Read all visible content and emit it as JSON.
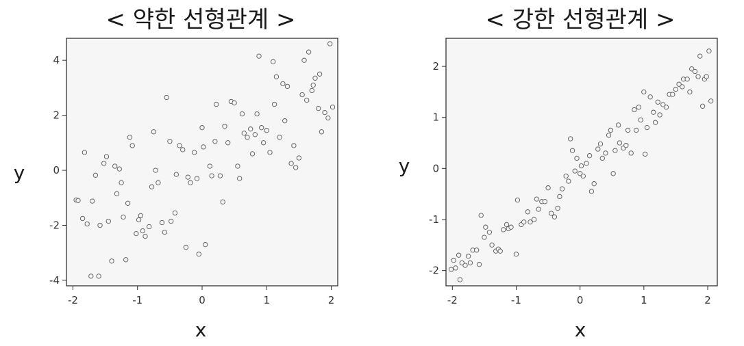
{
  "chart_data": [
    {
      "type": "scatter",
      "title": "< 약한 선형관계 >",
      "xlabel": "x",
      "ylabel": "y",
      "xlim": [
        -2.1,
        2.1
      ],
      "ylim": [
        -4.2,
        4.8
      ],
      "xticks": [
        -2,
        -1,
        0,
        1,
        2
      ],
      "yticks": [
        -4,
        -2,
        0,
        2,
        4
      ],
      "grid": false,
      "marker_color": "#555555",
      "points": [
        {
          "x": -1.95,
          "y": -1.08
        },
        {
          "x": -1.92,
          "y": -1.1
        },
        {
          "x": -1.85,
          "y": -1.75
        },
        {
          "x": -1.82,
          "y": 0.65
        },
        {
          "x": -1.78,
          "y": -1.95
        },
        {
          "x": -1.72,
          "y": -3.85
        },
        {
          "x": -1.7,
          "y": -1.12
        },
        {
          "x": -1.65,
          "y": -0.18
        },
        {
          "x": -1.6,
          "y": -3.85
        },
        {
          "x": -1.58,
          "y": -2.0
        },
        {
          "x": -1.52,
          "y": 0.25
        },
        {
          "x": -1.48,
          "y": 0.5
        },
        {
          "x": -1.45,
          "y": -1.85
        },
        {
          "x": -1.4,
          "y": -3.3
        },
        {
          "x": -1.35,
          "y": 0.15
        },
        {
          "x": -1.32,
          "y": -0.85
        },
        {
          "x": -1.28,
          "y": 0.05
        },
        {
          "x": -1.25,
          "y": -0.45
        },
        {
          "x": -1.22,
          "y": -1.7
        },
        {
          "x": -1.18,
          "y": -3.25
        },
        {
          "x": -1.15,
          "y": -1.2
        },
        {
          "x": -1.12,
          "y": 1.2
        },
        {
          "x": -1.08,
          "y": 0.9
        },
        {
          "x": -1.02,
          "y": -2.3
        },
        {
          "x": -0.98,
          "y": -1.8
        },
        {
          "x": -0.95,
          "y": -1.65
        },
        {
          "x": -0.92,
          "y": -2.2
        },
        {
          "x": -0.88,
          "y": -2.4
        },
        {
          "x": -0.82,
          "y": -2.05
        },
        {
          "x": -0.78,
          "y": -0.6
        },
        {
          "x": -0.75,
          "y": 1.4
        },
        {
          "x": -0.72,
          "y": -0.0
        },
        {
          "x": -0.68,
          "y": -0.45
        },
        {
          "x": -0.62,
          "y": -1.9
        },
        {
          "x": -0.58,
          "y": -2.25
        },
        {
          "x": -0.55,
          "y": 2.65
        },
        {
          "x": -0.5,
          "y": 1.05
        },
        {
          "x": -0.48,
          "y": -1.85
        },
        {
          "x": -0.42,
          "y": -1.55
        },
        {
          "x": -0.4,
          "y": -0.15
        },
        {
          "x": -0.35,
          "y": 0.9
        },
        {
          "x": -0.3,
          "y": 0.75
        },
        {
          "x": -0.25,
          "y": -2.8
        },
        {
          "x": -0.22,
          "y": -0.25
        },
        {
          "x": -0.18,
          "y": -0.45
        },
        {
          "x": -0.12,
          "y": 0.65
        },
        {
          "x": -0.08,
          "y": -0.3
        },
        {
          "x": -0.05,
          "y": -3.05
        },
        {
          "x": 0.0,
          "y": 1.55
        },
        {
          "x": 0.02,
          "y": 0.85
        },
        {
          "x": 0.05,
          "y": -2.7
        },
        {
          "x": 0.12,
          "y": 0.15
        },
        {
          "x": 0.15,
          "y": -0.2
        },
        {
          "x": 0.2,
          "y": 1.05
        },
        {
          "x": 0.22,
          "y": 2.4
        },
        {
          "x": 0.28,
          "y": -0.2
        },
        {
          "x": 0.32,
          "y": -1.15
        },
        {
          "x": 0.35,
          "y": 1.6
        },
        {
          "x": 0.4,
          "y": 1.0
        },
        {
          "x": 0.45,
          "y": 2.5
        },
        {
          "x": 0.5,
          "y": 2.45
        },
        {
          "x": 0.55,
          "y": 0.15
        },
        {
          "x": 0.58,
          "y": -0.3
        },
        {
          "x": 0.62,
          "y": 2.05
        },
        {
          "x": 0.65,
          "y": 1.35
        },
        {
          "x": 0.7,
          "y": 1.2
        },
        {
          "x": 0.75,
          "y": 1.5
        },
        {
          "x": 0.78,
          "y": 0.6
        },
        {
          "x": 0.82,
          "y": 1.3
        },
        {
          "x": 0.85,
          "y": 2.05
        },
        {
          "x": 0.88,
          "y": 4.15
        },
        {
          "x": 0.92,
          "y": 1.55
        },
        {
          "x": 0.95,
          "y": 1.0
        },
        {
          "x": 1.0,
          "y": 1.45
        },
        {
          "x": 1.05,
          "y": 0.65
        },
        {
          "x": 1.1,
          "y": 3.95
        },
        {
          "x": 1.12,
          "y": 2.4
        },
        {
          "x": 1.15,
          "y": 3.4
        },
        {
          "x": 1.2,
          "y": 1.2
        },
        {
          "x": 1.25,
          "y": 3.15
        },
        {
          "x": 1.28,
          "y": 1.8
        },
        {
          "x": 1.32,
          "y": 3.05
        },
        {
          "x": 1.38,
          "y": 0.25
        },
        {
          "x": 1.42,
          "y": 0.9
        },
        {
          "x": 1.45,
          "y": 0.1
        },
        {
          "x": 1.5,
          "y": 0.45
        },
        {
          "x": 1.55,
          "y": 2.75
        },
        {
          "x": 1.58,
          "y": 4.0
        },
        {
          "x": 1.62,
          "y": 2.55
        },
        {
          "x": 1.65,
          "y": 4.3
        },
        {
          "x": 1.7,
          "y": 2.9
        },
        {
          "x": 1.72,
          "y": 3.1
        },
        {
          "x": 1.75,
          "y": 3.35
        },
        {
          "x": 1.8,
          "y": 2.25
        },
        {
          "x": 1.82,
          "y": 3.5
        },
        {
          "x": 1.85,
          "y": 1.4
        },
        {
          "x": 1.9,
          "y": 2.1
        },
        {
          "x": 1.95,
          "y": 1.9
        },
        {
          "x": 1.98,
          "y": 4.6
        },
        {
          "x": 2.02,
          "y": 2.3
        }
      ]
    },
    {
      "type": "scatter",
      "title": "< 강한 선형관계 >",
      "xlabel": "x",
      "ylabel": "y",
      "xlim": [
        -2.1,
        2.15
      ],
      "ylim": [
        -2.3,
        2.55
      ],
      "xticks": [
        -2,
        -1,
        0,
        1,
        2
      ],
      "yticks": [
        -2,
        -1,
        0,
        1,
        2
      ],
      "grid": false,
      "marker_color": "#555555",
      "points": [
        {
          "x": -2.02,
          "y": -1.98
        },
        {
          "x": -1.98,
          "y": -1.8
        },
        {
          "x": -1.95,
          "y": -1.95
        },
        {
          "x": -1.9,
          "y": -1.7
        },
        {
          "x": -1.88,
          "y": -2.18
        },
        {
          "x": -1.85,
          "y": -1.85
        },
        {
          "x": -1.8,
          "y": -1.9
        },
        {
          "x": -1.75,
          "y": -1.72
        },
        {
          "x": -1.72,
          "y": -1.85
        },
        {
          "x": -1.68,
          "y": -1.6
        },
        {
          "x": -1.62,
          "y": -1.6
        },
        {
          "x": -1.58,
          "y": -1.88
        },
        {
          "x": -1.55,
          "y": -0.92
        },
        {
          "x": -1.5,
          "y": -1.35
        },
        {
          "x": -1.48,
          "y": -1.15
        },
        {
          "x": -1.42,
          "y": -1.25
        },
        {
          "x": -1.38,
          "y": -1.5
        },
        {
          "x": -1.32,
          "y": -1.62
        },
        {
          "x": -1.28,
          "y": -1.58
        },
        {
          "x": -1.25,
          "y": -1.62
        },
        {
          "x": -1.2,
          "y": -1.2
        },
        {
          "x": -1.15,
          "y": -1.1
        },
        {
          "x": -1.12,
          "y": -1.18
        },
        {
          "x": -1.08,
          "y": -1.15
        },
        {
          "x": -1.0,
          "y": -1.68
        },
        {
          "x": -0.98,
          "y": -0.62
        },
        {
          "x": -0.92,
          "y": -1.1
        },
        {
          "x": -0.88,
          "y": -1.05
        },
        {
          "x": -0.82,
          "y": -0.85
        },
        {
          "x": -0.78,
          "y": -1.05
        },
        {
          "x": -0.72,
          "y": -1.0
        },
        {
          "x": -0.68,
          "y": -0.6
        },
        {
          "x": -0.65,
          "y": -0.8
        },
        {
          "x": -0.6,
          "y": -0.65
        },
        {
          "x": -0.55,
          "y": -0.65
        },
        {
          "x": -0.5,
          "y": -0.38
        },
        {
          "x": -0.45,
          "y": -0.88
        },
        {
          "x": -0.4,
          "y": -0.95
        },
        {
          "x": -0.35,
          "y": -0.78
        },
        {
          "x": -0.32,
          "y": -0.55
        },
        {
          "x": -0.28,
          "y": -0.4
        },
        {
          "x": -0.22,
          "y": -0.15
        },
        {
          "x": -0.18,
          "y": -0.25
        },
        {
          "x": -0.15,
          "y": 0.58
        },
        {
          "x": -0.12,
          "y": 0.35
        },
        {
          "x": -0.08,
          "y": -0.05
        },
        {
          "x": -0.05,
          "y": 0.2
        },
        {
          "x": 0.0,
          "y": -0.1
        },
        {
          "x": 0.02,
          "y": 0.05
        },
        {
          "x": 0.05,
          "y": -0.15
        },
        {
          "x": 0.1,
          "y": 0.1
        },
        {
          "x": 0.15,
          "y": 0.25
        },
        {
          "x": 0.18,
          "y": -0.45
        },
        {
          "x": 0.22,
          "y": -0.3
        },
        {
          "x": 0.28,
          "y": 0.38
        },
        {
          "x": 0.32,
          "y": 0.48
        },
        {
          "x": 0.35,
          "y": 0.2
        },
        {
          "x": 0.4,
          "y": 0.3
        },
        {
          "x": 0.45,
          "y": 0.65
        },
        {
          "x": 0.48,
          "y": 0.75
        },
        {
          "x": 0.52,
          "y": -0.1
        },
        {
          "x": 0.55,
          "y": 0.35
        },
        {
          "x": 0.6,
          "y": 0.85
        },
        {
          "x": 0.62,
          "y": 0.5
        },
        {
          "x": 0.68,
          "y": 0.4
        },
        {
          "x": 0.72,
          "y": 0.45
        },
        {
          "x": 0.75,
          "y": 0.75
        },
        {
          "x": 0.8,
          "y": 0.3
        },
        {
          "x": 0.85,
          "y": 1.15
        },
        {
          "x": 0.88,
          "y": 0.75
        },
        {
          "x": 0.92,
          "y": 1.2
        },
        {
          "x": 0.95,
          "y": 0.95
        },
        {
          "x": 1.0,
          "y": 1.5
        },
        {
          "x": 1.02,
          "y": 0.28
        },
        {
          "x": 1.05,
          "y": 0.8
        },
        {
          "x": 1.1,
          "y": 1.4
        },
        {
          "x": 1.15,
          "y": 1.1
        },
        {
          "x": 1.18,
          "y": 0.9
        },
        {
          "x": 1.22,
          "y": 1.3
        },
        {
          "x": 1.25,
          "y": 1.05
        },
        {
          "x": 1.3,
          "y": 1.25
        },
        {
          "x": 1.35,
          "y": 1.2
        },
        {
          "x": 1.4,
          "y": 1.45
        },
        {
          "x": 1.45,
          "y": 1.45
        },
        {
          "x": 1.5,
          "y": 1.55
        },
        {
          "x": 1.55,
          "y": 1.65
        },
        {
          "x": 1.6,
          "y": 1.6
        },
        {
          "x": 1.62,
          "y": 1.75
        },
        {
          "x": 1.68,
          "y": 1.75
        },
        {
          "x": 1.72,
          "y": 1.5
        },
        {
          "x": 1.75,
          "y": 1.95
        },
        {
          "x": 1.8,
          "y": 1.9
        },
        {
          "x": 1.85,
          "y": 1.8
        },
        {
          "x": 1.88,
          "y": 2.2
        },
        {
          "x": 1.92,
          "y": 1.22
        },
        {
          "x": 1.95,
          "y": 1.75
        },
        {
          "x": 1.98,
          "y": 1.8
        },
        {
          "x": 2.02,
          "y": 2.3
        },
        {
          "x": 2.05,
          "y": 1.32
        }
      ]
    }
  ]
}
